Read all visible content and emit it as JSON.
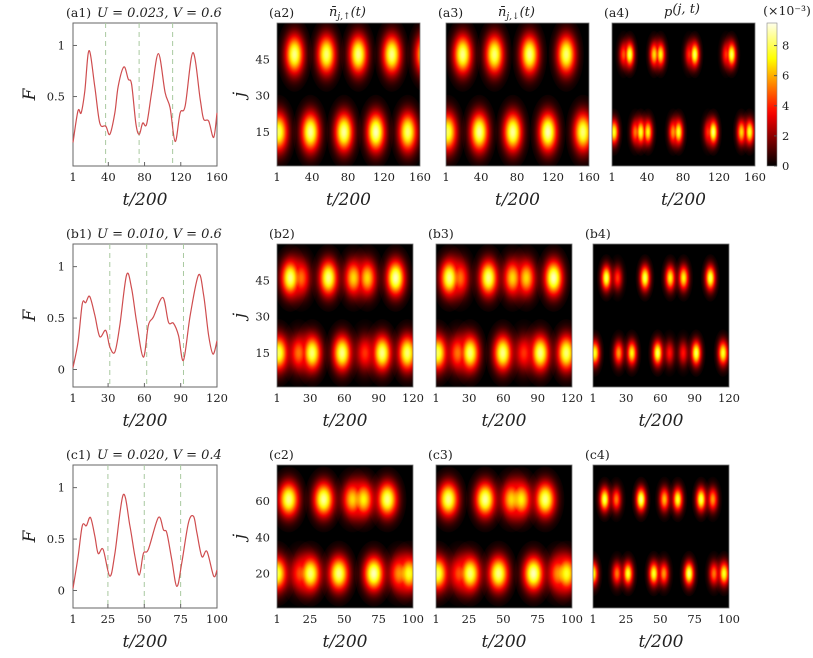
{
  "colorbar": {
    "label": "(×10⁻³)",
    "ticks": [
      0,
      2,
      4,
      6,
      8
    ],
    "range": [
      0,
      9.5
    ],
    "colormap": "hot"
  },
  "chart_data": [
    {
      "type": "line",
      "panel_label": "(a1)",
      "title": "U = 0.023,  V = 0.6",
      "xlabel": "t/200",
      "ylabel": "F",
      "xlim": [
        1,
        160
      ],
      "ylim": [
        -0.18,
        1.22
      ],
      "xticks": [
        1,
        40,
        80,
        120,
        160
      ],
      "yticks": [
        0.5,
        1
      ],
      "dashed_x": [
        37,
        74,
        111
      ],
      "color": "#cf4d4f",
      "x": [
        1,
        6.5,
        10,
        14,
        18.7,
        25,
        30.6,
        37.2,
        41.7,
        47.2,
        50.9,
        57.2,
        62,
        65.7,
        70.5,
        74.2,
        77.9,
        82.3,
        88,
        95.3,
        102.7,
        108.2,
        113.8,
        119.3,
        124.9,
        133.4,
        141.5,
        145.2,
        150.8,
        156.3,
        160
      ],
      "y": [
        0.05,
        0.36,
        0.34,
        0.55,
        0.95,
        0.6,
        0.24,
        0.21,
        0.13,
        0.34,
        0.6,
        0.79,
        0.67,
        0.62,
        0.23,
        0.13,
        0.24,
        0.23,
        0.55,
        0.92,
        0.54,
        0.39,
        0.06,
        0.34,
        0.41,
        0.93,
        0.47,
        0.28,
        0.26,
        0.1,
        0.34
      ]
    },
    {
      "type": "heatmap",
      "panel_label": "(a2)",
      "title": {
        "symbol": "n̄",
        "sub": "j,↑",
        "arg": "(t)"
      },
      "xlabel": "t/200",
      "ylabel": "j",
      "xlim": [
        1,
        160
      ],
      "ylim": [
        1,
        60
      ],
      "xticks": [
        1,
        40,
        80,
        120,
        160
      ],
      "yticks": [
        15,
        30,
        45
      ],
      "sigma_t": 7,
      "sigma_j": 5.5,
      "blobs": [
        [
          20.5,
          47,
          0.9
        ],
        [
          56,
          47,
          0.88
        ],
        [
          91.4,
          47,
          0.9
        ],
        [
          128.7,
          47,
          0.9
        ],
        [
          165,
          47,
          0.85
        ],
        [
          2.8,
          15,
          0.85
        ],
        [
          38.2,
          15,
          0.92
        ],
        [
          75.5,
          15,
          0.92
        ],
        [
          110.9,
          15,
          0.95
        ],
        [
          146.4,
          15,
          0.88
        ]
      ]
    },
    {
      "type": "heatmap",
      "panel_label": "(a3)",
      "title": {
        "symbol": "n̄",
        "sub": "j,↓",
        "arg": "(t)"
      },
      "xlabel": "t/200",
      "ylabel": "",
      "xlim": [
        1,
        160
      ],
      "ylim": [
        1,
        60
      ],
      "xticks": [
        1,
        40,
        80,
        120,
        160
      ],
      "yticks": [],
      "sigma_t": 7,
      "sigma_j": 5.5,
      "blobs": [
        [
          19.6,
          47,
          0.9
        ],
        [
          54.9,
          47,
          0.88
        ],
        [
          93.9,
          47,
          0.9
        ],
        [
          134.7,
          47,
          0.88
        ],
        [
          2.9,
          15,
          0.85
        ],
        [
          38,
          15,
          0.92
        ],
        [
          75.3,
          15,
          0.92
        ],
        [
          114.3,
          15,
          0.95
        ],
        [
          153.3,
          15,
          0.88
        ]
      ]
    },
    {
      "type": "heatmap",
      "panel_label": "(a4)",
      "title": {
        "symbol": "p",
        "sub": "",
        "arg": "(j, t)"
      },
      "xlabel": "t/200",
      "ylabel": "",
      "xlim": [
        1,
        160
      ],
      "ylim": [
        1,
        60
      ],
      "xticks": [
        1,
        40,
        80,
        120,
        160
      ],
      "yticks": [],
      "sigma_t": 3.5,
      "sigma_j": 3.5,
      "blobs": [
        [
          14,
          47,
          0.5
        ],
        [
          20.7,
          47,
          0.85
        ],
        [
          48,
          47,
          0.7
        ],
        [
          55,
          47,
          0.75
        ],
        [
          93,
          47,
          0.85
        ],
        [
          87,
          47,
          0.45
        ],
        [
          128,
          47,
          0.45
        ],
        [
          134,
          47,
          0.85
        ],
        [
          3.2,
          15,
          0.8
        ],
        [
          27,
          15,
          0.55
        ],
        [
          33,
          15,
          0.8
        ],
        [
          41,
          15,
          0.75
        ],
        [
          69,
          15,
          0.6
        ],
        [
          75,
          15,
          0.8
        ],
        [
          113.6,
          15,
          0.88
        ],
        [
          108,
          15,
          0.45
        ],
        [
          145,
          15,
          0.7
        ],
        [
          154,
          15,
          0.8
        ]
      ]
    },
    {
      "type": "line",
      "panel_label": "(b1)",
      "title": "U = 0.010,  V = 0.6",
      "xlabel": "t/200",
      "ylabel": "F",
      "xlim": [
        1,
        120
      ],
      "ylim": [
        -0.17,
        1.22
      ],
      "xticks": [
        1,
        30,
        60,
        90,
        120
      ],
      "yticks": [
        0,
        0.5,
        1
      ],
      "dashed_x": [
        31.4,
        61.9,
        92.3
      ],
      "color": "#cf4d4f",
      "x": [
        1,
        5.2,
        8.7,
        11.5,
        14.8,
        19,
        23.1,
        28.1,
        31.4,
        35.6,
        39.7,
        45.3,
        49.4,
        53.6,
        59.1,
        63.3,
        67.4,
        75.2,
        79.9,
        84,
        88.2,
        92.3,
        97.9,
        104.8,
        109,
        113.1,
        116.7,
        120
      ],
      "y": [
        0.02,
        0.27,
        0.64,
        0.65,
        0.71,
        0.53,
        0.32,
        0.38,
        0.22,
        0.17,
        0.43,
        0.92,
        0.79,
        0.46,
        0.12,
        0.43,
        0.51,
        0.7,
        0.46,
        0.45,
        0.33,
        0.09,
        0.53,
        0.92,
        0.72,
        0.33,
        0.15,
        0.28
      ]
    },
    {
      "type": "heatmap",
      "panel_label": "(b2)",
      "title": {
        "symbol": "",
        "sub": "",
        "arg": ""
      },
      "xlabel": "t/200",
      "ylabel": "j",
      "xlim": [
        1,
        120
      ],
      "ylim": [
        1,
        60
      ],
      "xticks": [
        1,
        30,
        60,
        90,
        120
      ],
      "yticks": [
        15,
        30,
        45
      ],
      "sigma_t": 5.5,
      "sigma_j": 5,
      "blobs": [
        [
          12.7,
          46,
          0.9
        ],
        [
          22,
          46,
          0.55
        ],
        [
          46,
          46,
          0.9
        ],
        [
          68,
          46,
          0.7
        ],
        [
          80,
          46,
          0.7
        ],
        [
          104.8,
          46,
          0.95
        ],
        [
          2.5,
          15,
          0.85
        ],
        [
          20,
          15,
          0.55
        ],
        [
          31.7,
          15,
          0.88
        ],
        [
          58,
          15,
          0.9
        ],
        [
          78,
          15,
          0.45
        ],
        [
          93,
          15,
          0.9
        ],
        [
          115,
          15,
          0.88
        ]
      ]
    },
    {
      "type": "heatmap",
      "panel_label": "(b3)",
      "title": {
        "symbol": "",
        "sub": "",
        "arg": ""
      },
      "xlabel": "t/200",
      "ylabel": "",
      "xlim": [
        1,
        120
      ],
      "ylim": [
        1,
        60
      ],
      "xticks": [
        1,
        30,
        60,
        90,
        120
      ],
      "yticks": [],
      "sigma_t": 5.5,
      "sigma_j": 5,
      "blobs": [
        [
          12.7,
          46,
          0.9
        ],
        [
          22,
          46,
          0.55
        ],
        [
          46.9,
          46,
          0.9
        ],
        [
          68,
          46,
          0.7
        ],
        [
          80,
          46,
          0.7
        ],
        [
          103.9,
          46,
          0.95
        ],
        [
          2.5,
          15,
          0.85
        ],
        [
          20,
          15,
          0.55
        ],
        [
          30.8,
          15,
          0.88
        ],
        [
          59.5,
          15,
          0.9
        ],
        [
          78,
          15,
          0.45
        ],
        [
          92.2,
          15,
          0.9
        ],
        [
          115,
          15,
          0.88
        ]
      ]
    },
    {
      "type": "heatmap",
      "panel_label": "(b4)",
      "title": {
        "symbol": "",
        "sub": "",
        "arg": ""
      },
      "xlabel": "t/200",
      "ylabel": "",
      "xlim": [
        1,
        120
      ],
      "ylim": [
        1,
        60
      ],
      "xticks": [
        1,
        30,
        60,
        90,
        120
      ],
      "yticks": [],
      "sigma_t": 3,
      "sigma_j": 3.5,
      "blobs": [
        [
          12.7,
          46,
          0.85
        ],
        [
          22.5,
          46,
          0.45
        ],
        [
          46.5,
          46,
          0.85
        ],
        [
          68.6,
          46,
          0.75
        ],
        [
          80.3,
          46,
          0.75
        ],
        [
          103.7,
          46,
          0.85
        ],
        [
          2.5,
          15,
          0.8
        ],
        [
          23.5,
          15,
          0.6
        ],
        [
          35,
          15,
          0.75
        ],
        [
          57.6,
          15,
          0.85
        ],
        [
          68,
          15,
          0.4
        ],
        [
          80,
          15,
          0.4
        ],
        [
          91.3,
          15,
          0.85
        ],
        [
          114.8,
          15,
          0.8
        ]
      ]
    },
    {
      "type": "line",
      "panel_label": "(c1)",
      "title": "U = 0.020,  V = 0.4",
      "xlabel": "t/200",
      "ylabel": "F",
      "xlim": [
        1,
        100
      ],
      "ylim": [
        -0.17,
        1.22
      ],
      "xticks": [
        1,
        25,
        50,
        75,
        100
      ],
      "yticks": [
        0,
        0.5,
        1
      ],
      "dashed_x": [
        25,
        50,
        75
      ],
      "color": "#cf4d4f",
      "x": [
        1,
        4.5,
        7.4,
        10.2,
        13,
        16,
        18.3,
        21.7,
        26.3,
        29.8,
        35.5,
        40.1,
        43.6,
        46.6,
        49.4,
        52.8,
        59.7,
        63.2,
        65.5,
        68.9,
        72.4,
        75.8,
        80.4,
        83.9,
        86.2,
        89.6,
        93.1,
        97.7,
        100
      ],
      "y": [
        0.02,
        0.33,
        0.63,
        0.63,
        0.71,
        0.53,
        0.36,
        0.4,
        0.14,
        0.36,
        0.93,
        0.63,
        0.33,
        0.15,
        0.36,
        0.4,
        0.71,
        0.59,
        0.56,
        0.3,
        0.04,
        0.27,
        0.66,
        0.72,
        0.56,
        0.33,
        0.38,
        0.14,
        0.2
      ]
    },
    {
      "type": "heatmap",
      "panel_label": "(c2)",
      "title": {
        "symbol": "",
        "sub": "",
        "arg": ""
      },
      "xlabel": "t/200",
      "ylabel": "j",
      "xlim": [
        1,
        100
      ],
      "ylim": [
        1,
        80
      ],
      "xticks": [
        1,
        25,
        50,
        75,
        100
      ],
      "yticks": [
        20,
        40,
        60
      ],
      "sigma_t": 5,
      "sigma_j": 6.5,
      "blobs": [
        [
          9.5,
          61,
          0.9
        ],
        [
          35,
          61,
          0.92
        ],
        [
          56,
          61,
          0.7
        ],
        [
          64,
          61,
          0.75
        ],
        [
          81.3,
          61,
          0.9
        ],
        [
          1,
          20,
          0.85
        ],
        [
          18,
          20,
          0.5
        ],
        [
          25.3,
          20,
          0.88
        ],
        [
          46,
          20,
          0.9
        ],
        [
          71.5,
          20,
          0.95
        ],
        [
          90,
          20,
          0.6
        ],
        [
          97,
          20,
          0.8
        ]
      ]
    },
    {
      "type": "heatmap",
      "panel_label": "(c3)",
      "title": {
        "symbol": "",
        "sub": "",
        "arg": ""
      },
      "xlabel": "t/200",
      "ylabel": "",
      "xlim": [
        1,
        100
      ],
      "ylim": [
        1,
        80
      ],
      "xticks": [
        1,
        25,
        50,
        75,
        100
      ],
      "yticks": [],
      "sigma_t": 5,
      "sigma_j": 6.5,
      "blobs": [
        [
          10,
          61,
          0.9
        ],
        [
          36.8,
          61,
          0.92
        ],
        [
          56,
          61,
          0.7
        ],
        [
          63,
          61,
          0.75
        ],
        [
          80.5,
          61,
          0.9
        ],
        [
          2.2,
          20,
          0.85
        ],
        [
          18,
          20,
          0.5
        ],
        [
          25.8,
          20,
          0.88
        ],
        [
          46.5,
          20,
          0.9
        ],
        [
          72,
          20,
          0.95
        ],
        [
          90,
          20,
          0.6
        ],
        [
          96,
          20,
          0.8
        ]
      ]
    },
    {
      "type": "heatmap",
      "panel_label": "(c4)",
      "title": {
        "symbol": "",
        "sub": "",
        "arg": ""
      },
      "xlabel": "t/200",
      "ylabel": "",
      "xlim": [
        1,
        100
      ],
      "ylim": [
        1,
        80
      ],
      "xticks": [
        1,
        25,
        50,
        75,
        100
      ],
      "yticks": [],
      "sigma_t": 2.5,
      "sigma_j": 4.5,
      "blobs": [
        [
          9.5,
          61,
          0.85
        ],
        [
          18,
          61,
          0.55
        ],
        [
          36,
          61,
          0.9
        ],
        [
          53,
          61,
          0.65
        ],
        [
          62.7,
          61,
          0.8
        ],
        [
          79.7,
          61,
          0.85
        ],
        [
          88.2,
          61,
          0.6
        ],
        [
          1,
          20,
          0.8
        ],
        [
          18.5,
          20,
          0.55
        ],
        [
          26.5,
          20,
          0.8
        ],
        [
          45.3,
          20,
          0.8
        ],
        [
          52.6,
          20,
          0.6
        ],
        [
          70.9,
          20,
          0.88
        ],
        [
          89.1,
          20,
          0.55
        ],
        [
          96.4,
          20,
          0.8
        ]
      ]
    }
  ]
}
